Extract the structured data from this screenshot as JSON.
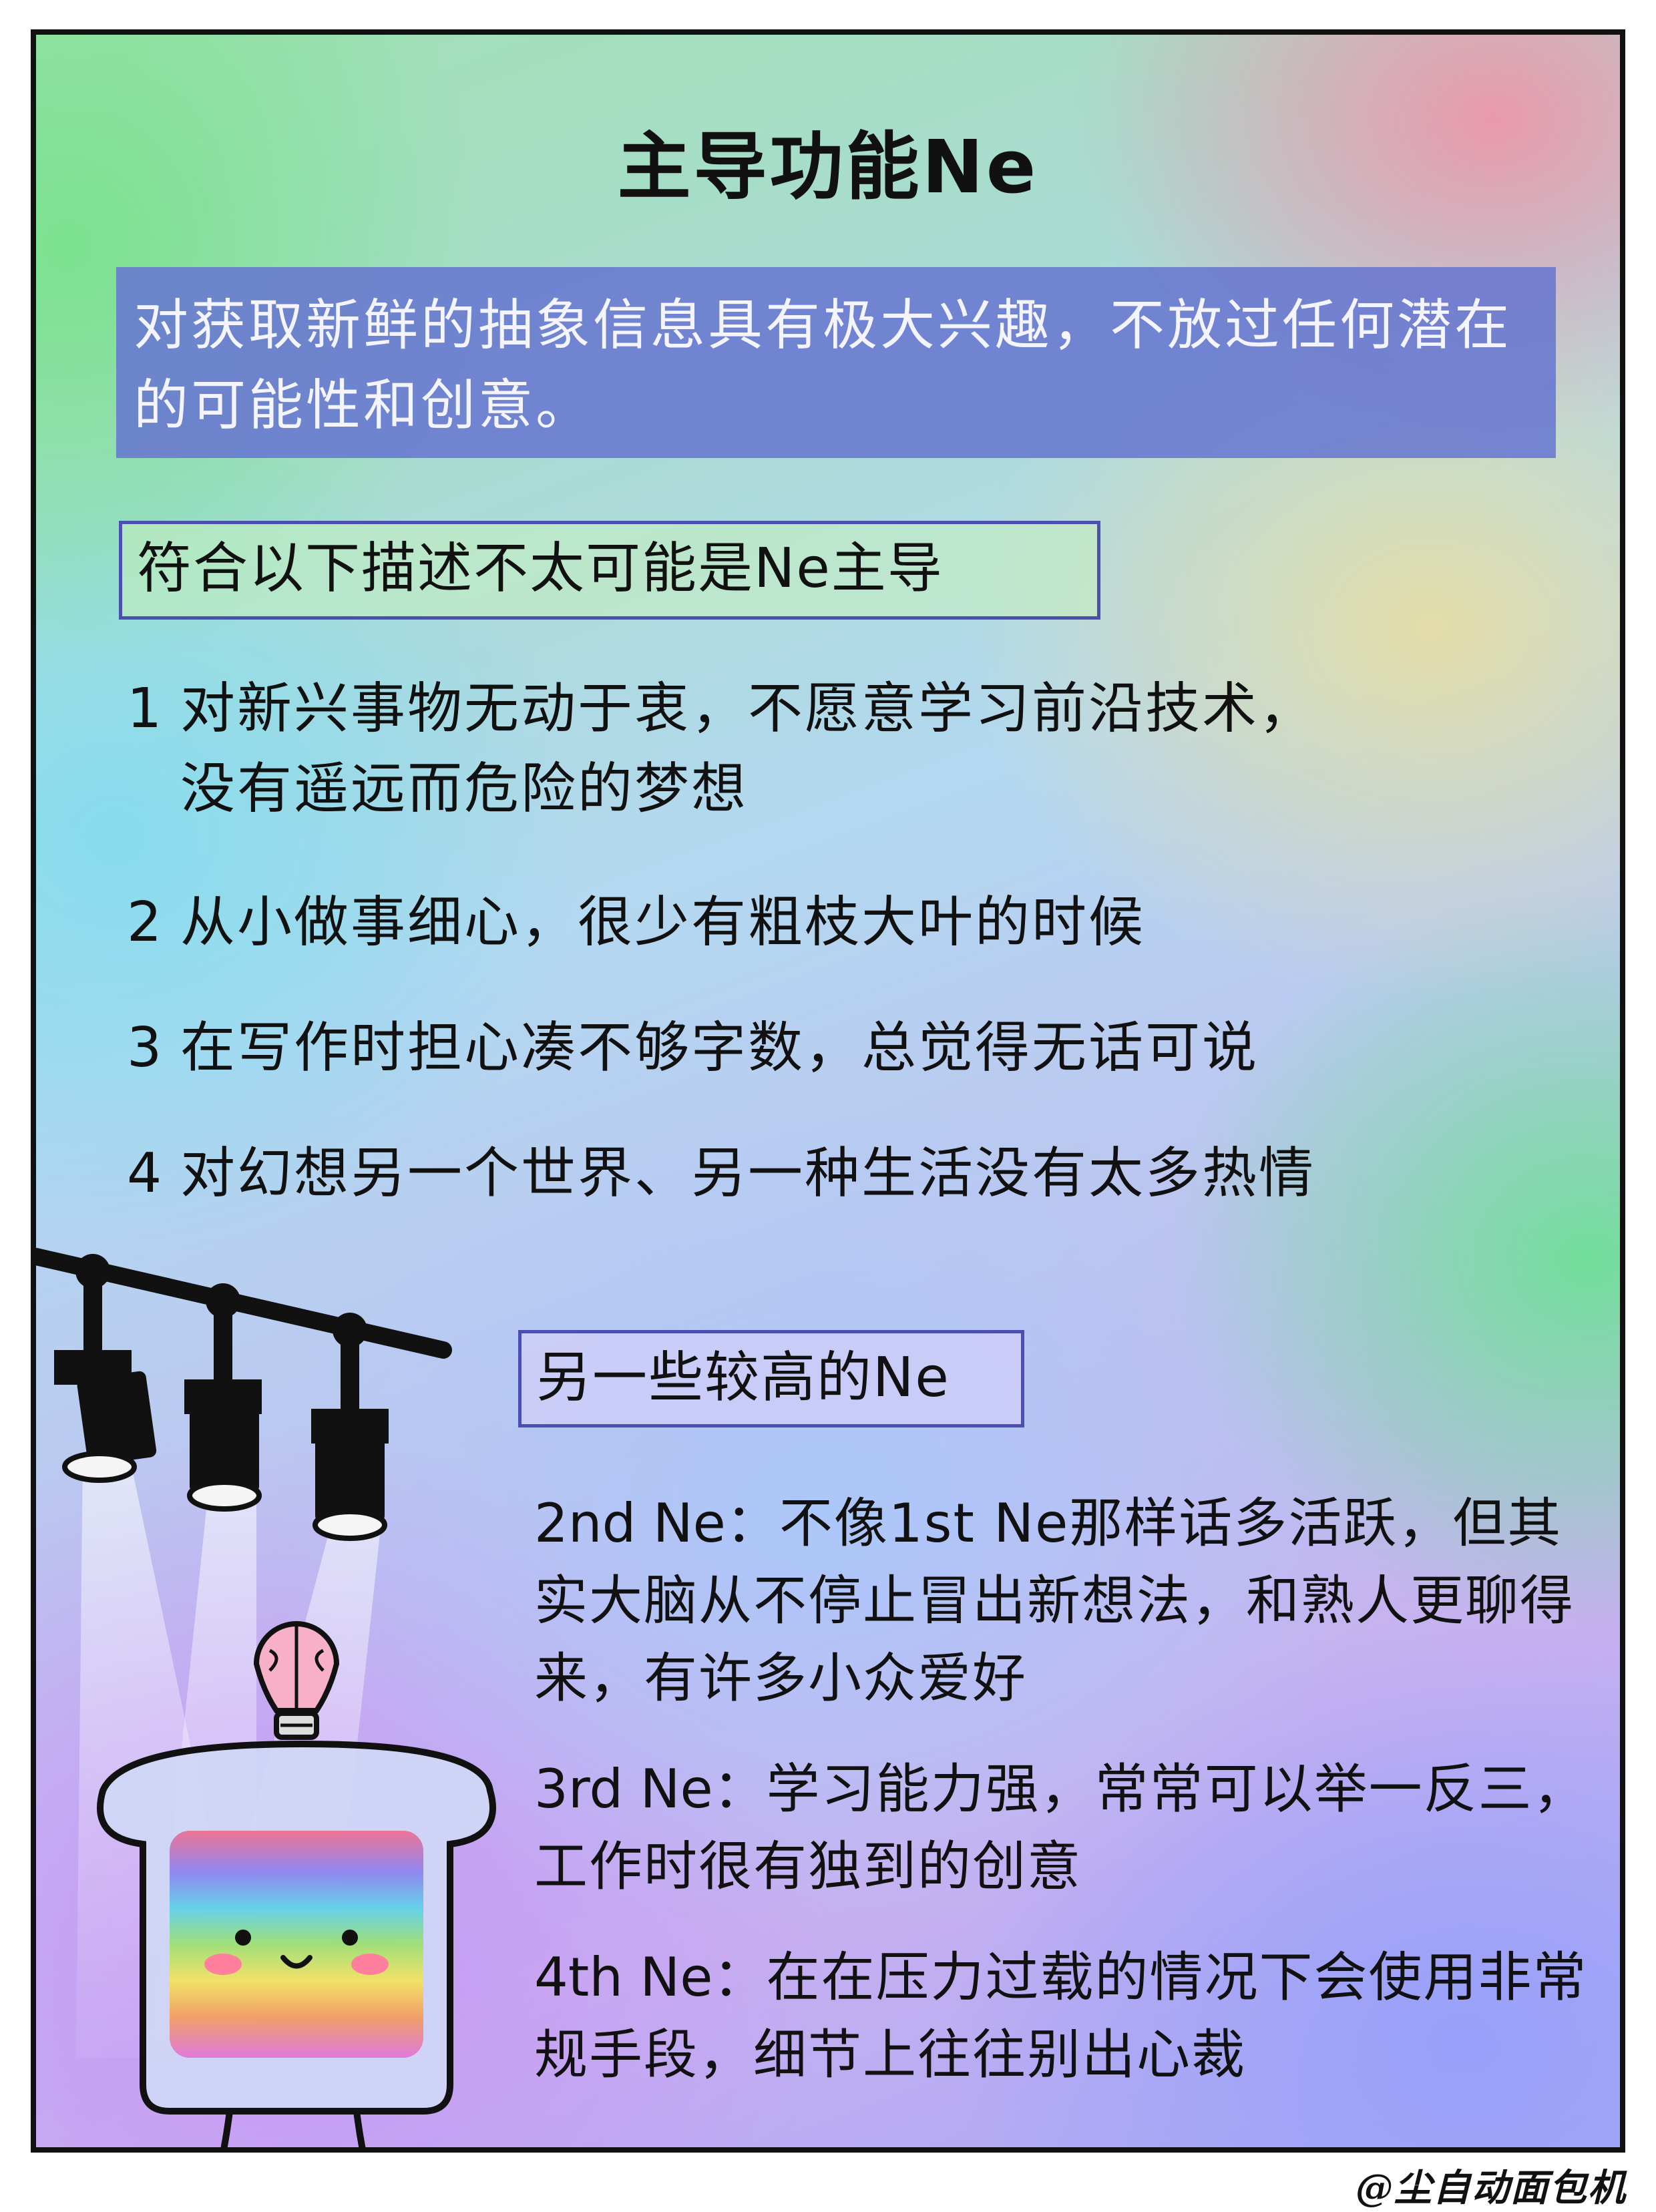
{
  "title": "主导功能Ne",
  "intro": "对获取新鲜的抽象信息具有极大兴趣，不放过任何潜在的可能性和创意。",
  "unlikely_heading": "符合以下描述不太可能是Ne主导",
  "criteria": [
    {
      "num": "1",
      "line1": "对新兴事物无动于衷，不愿意学习前沿技术，",
      "line2": "没有遥远而危险的梦想"
    },
    {
      "num": "2",
      "line1": "从小做事细心，很少有粗枝大叶的时候"
    },
    {
      "num": "3",
      "line1": "在写作时担心凑不够字数，总觉得无话可说"
    },
    {
      "num": "4",
      "line1": "对幻想另一个世界、另一种生活没有太多热情"
    }
  ],
  "higher_heading": "另一些较高的Ne",
  "levels": [
    {
      "label": "2nd Ne：",
      "text": "不像1st Ne那样话多活跃，但其实大脑从不停止冒出新想法，和熟人更聊得来，有许多小众爱好"
    },
    {
      "label": "3rd Ne：",
      "text": "学习能力强，常常可以举一反三，工作时很有独到的创意"
    },
    {
      "label": "4th Ne：",
      "text": "在在压力过载的情况下会使用非常规手段，细节上往往别出心裁"
    }
  ],
  "credit": "@尘自动面包机",
  "colors": {
    "intro_box": "#6878d0",
    "heading_border": "#4a4fb0",
    "border": "#111111"
  },
  "illustration": {
    "icons": [
      "spotlight-rail",
      "spotlight",
      "lightbulb-icon",
      "rainbow-toast-mascot"
    ]
  }
}
